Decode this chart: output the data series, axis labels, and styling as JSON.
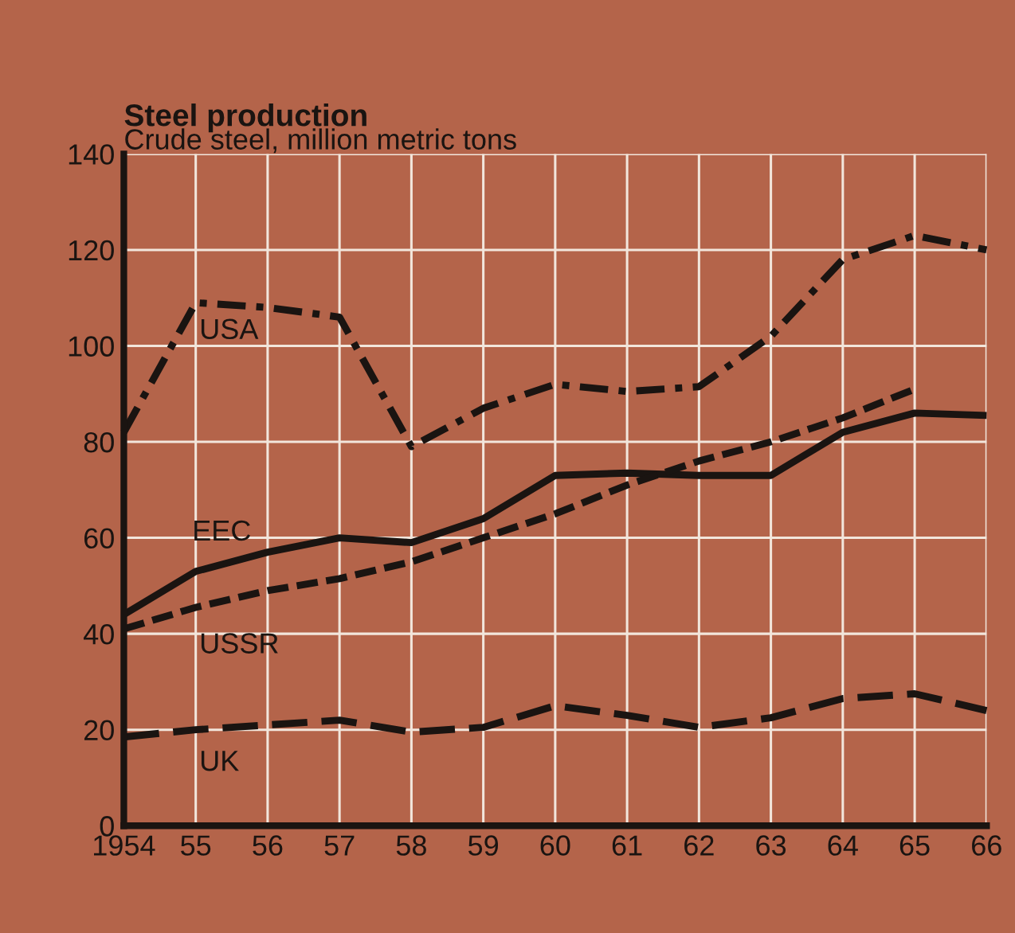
{
  "chart_data": {
    "type": "line",
    "title": "Steel production",
    "subtitle": "Crude steel, million metric tons",
    "x": [
      1954,
      1955,
      1956,
      1957,
      1958,
      1959,
      1960,
      1961,
      1962,
      1963,
      1964,
      1965,
      1966
    ],
    "series": [
      {
        "name": "USA",
        "color": "#1a1411",
        "line_style": "dashdot",
        "values": [
          82,
          109,
          108,
          106,
          79,
          87,
          92,
          90.5,
          91.5,
          102,
          118,
          123,
          120
        ]
      },
      {
        "name": "EEC",
        "color": "#1a1411",
        "line_style": "solid",
        "values": [
          44,
          53,
          57,
          60,
          59,
          64,
          73,
          73.5,
          73,
          73,
          82,
          86,
          85.5
        ]
      },
      {
        "name": "USSR",
        "color": "#1a1411",
        "line_style": "dashed",
        "values": [
          41,
          45.5,
          49,
          51.5,
          55,
          60,
          65,
          71,
          76,
          80,
          85,
          91,
          null
        ]
      },
      {
        "name": "UK",
        "color": "#1a1411",
        "line_style": "dashed",
        "values": [
          18.5,
          20,
          21,
          22,
          19.5,
          20.5,
          25,
          23,
          20.5,
          22.5,
          26.5,
          27.5,
          24
        ]
      }
    ],
    "xlim": [
      1954,
      1966
    ],
    "ylim": [
      0,
      140
    ],
    "xticks": [
      {
        "value": 1954,
        "label": "1954"
      },
      {
        "value": 1955,
        "label": "55"
      },
      {
        "value": 1956,
        "label": "56"
      },
      {
        "value": 1957,
        "label": "57"
      },
      {
        "value": 1958,
        "label": "58"
      },
      {
        "value": 1959,
        "label": "59"
      },
      {
        "value": 1960,
        "label": "60"
      },
      {
        "value": 1961,
        "label": "61"
      },
      {
        "value": 1962,
        "label": "62"
      },
      {
        "value": 1963,
        "label": "63"
      },
      {
        "value": 1964,
        "label": "64"
      },
      {
        "value": 1965,
        "label": "65"
      },
      {
        "value": 1966,
        "label": "66"
      }
    ],
    "yticks": [
      0,
      20,
      40,
      60,
      80,
      100,
      120,
      140
    ],
    "grid": true,
    "legend": false
  }
}
